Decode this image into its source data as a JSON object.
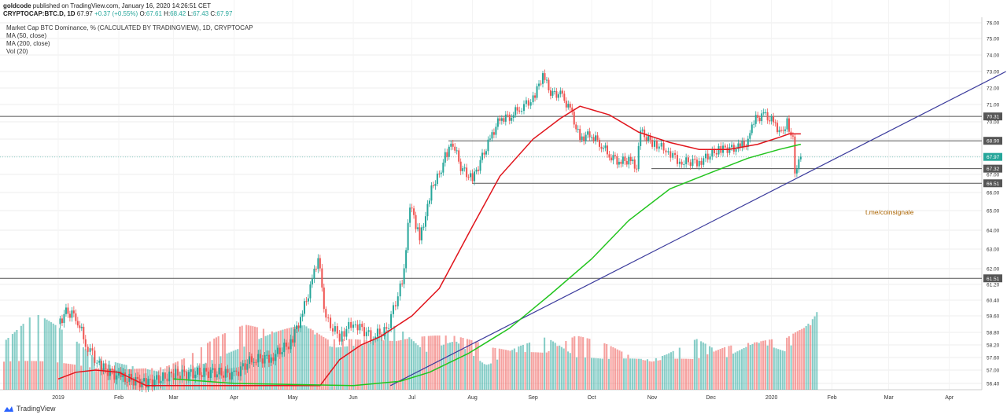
{
  "publish": {
    "author": "goldcode",
    "text": "published on TradingView.com, January 16, 2020 14:26:51 CET"
  },
  "ticker": {
    "symbol": "CRYPTOCAP:BTC.D, 1D",
    "last": "67.97",
    "change": "+0.37 (+0.55%)",
    "o_label": "O:",
    "o": "67.61",
    "h_label": "H:",
    "h": "68.42",
    "l_label": "L:",
    "l": "67.43",
    "c_label": "C:",
    "c": "67.97"
  },
  "legend": {
    "title": "Market Cap BTC Dominance, % (CALCULATED BY TRADINGVIEW), 1D, CRYPTOCAP",
    "ma50": "MA (50, close)",
    "ma200": "MA (200, close)",
    "vol": "Vol (20)"
  },
  "annotation": "t.me/coinsignale",
  "footer": {
    "brand": "TradingView"
  },
  "colors": {
    "up": "#26a69a",
    "down": "#ef5350",
    "ma50": "#e0151c",
    "ma200": "#22c41e",
    "trendline": "#3b3b9c",
    "hline": "#555555",
    "text": "#333333",
    "accent": "#ab6400"
  },
  "chart_data": {
    "type": "candlestick",
    "x_ticks": [
      "2019",
      "Feb",
      "Mar",
      "Apr",
      "May",
      "Jun",
      "Jul",
      "Aug",
      "Sep",
      "Oct",
      "Nov",
      "Dec",
      "2020",
      "Feb",
      "Mar",
      "Apr"
    ],
    "y_ticks": [
      "76.00",
      "75.00",
      "74.00",
      "73.00",
      "72.00",
      "71.00",
      "70.00",
      "69.00",
      "68.00",
      "67.00",
      "66.00",
      "65.00",
      "64.00",
      "63.00",
      "62.00",
      "61.20",
      "60.40",
      "59.60",
      "58.80",
      "58.20",
      "57.60",
      "57.00",
      "56.40"
    ],
    "price_labels": [
      {
        "value": "70.31",
        "bg": "#555555"
      },
      {
        "value": "68.90",
        "bg": "#555555"
      },
      {
        "value": "67.97",
        "bg": "#26a69a"
      },
      {
        "value": "67.32",
        "bg": "#555555"
      },
      {
        "value": "66.51",
        "bg": "#555555"
      },
      {
        "value": "61.51",
        "bg": "#555555"
      }
    ],
    "horizontal_levels": [
      70.31,
      68.9,
      67.32,
      66.51,
      61.51
    ],
    "close_points": [
      [
        "2019-01-01",
        59.2
      ],
      [
        "2019-01-05",
        59.8
      ],
      [
        "2019-01-10",
        59.6
      ],
      [
        "2019-01-15",
        58.3
      ],
      [
        "2019-01-22",
        57.2
      ],
      [
        "2019-02-01",
        56.7
      ],
      [
        "2019-02-15",
        56.4
      ],
      [
        "2019-03-01",
        56.8
      ],
      [
        "2019-03-20",
        56.9
      ],
      [
        "2019-04-01",
        56.8
      ],
      [
        "2019-04-10",
        57.5
      ],
      [
        "2019-04-20",
        57.6
      ],
      [
        "2019-04-30",
        58.3
      ],
      [
        "2019-05-05",
        59.5
      ],
      [
        "2019-05-10",
        61.0
      ],
      [
        "2019-05-14",
        62.6
      ],
      [
        "2019-05-18",
        59.4
      ],
      [
        "2019-05-25",
        58.6
      ],
      [
        "2019-06-01",
        59.3
      ],
      [
        "2019-06-10",
        58.6
      ],
      [
        "2019-06-18",
        58.9
      ],
      [
        "2019-06-25",
        61.0
      ],
      [
        "2019-06-27",
        61.8
      ],
      [
        "2019-06-30",
        65.3
      ],
      [
        "2019-07-03",
        64.3
      ],
      [
        "2019-07-05",
        63.5
      ],
      [
        "2019-07-08",
        64.8
      ],
      [
        "2019-07-11",
        66.3
      ],
      [
        "2019-07-15",
        67.0
      ],
      [
        "2019-07-18",
        68.0
      ],
      [
        "2019-07-22",
        68.8
      ],
      [
        "2019-07-26",
        67.4
      ],
      [
        "2019-08-01",
        66.7
      ],
      [
        "2019-08-05",
        67.7
      ],
      [
        "2019-08-10",
        69.0
      ],
      [
        "2019-08-15",
        70.2
      ],
      [
        "2019-08-20",
        70.3
      ],
      [
        "2019-08-25",
        70.8
      ],
      [
        "2019-09-01",
        71.3
      ],
      [
        "2019-09-06",
        72.8
      ],
      [
        "2019-09-10",
        71.7
      ],
      [
        "2019-09-15",
        71.6
      ],
      [
        "2019-09-20",
        70.7
      ],
      [
        "2019-09-25",
        69.0
      ],
      [
        "2019-09-30",
        69.3
      ],
      [
        "2019-10-05",
        68.8
      ],
      [
        "2019-10-10",
        68.1
      ],
      [
        "2019-10-15",
        67.7
      ],
      [
        "2019-10-20",
        67.8
      ],
      [
        "2019-10-24",
        67.4
      ],
      [
        "2019-10-26",
        69.4
      ],
      [
        "2019-11-01",
        68.8
      ],
      [
        "2019-11-08",
        68.4
      ],
      [
        "2019-11-15",
        67.7
      ],
      [
        "2019-11-25",
        67.7
      ],
      [
        "2019-12-05",
        68.4
      ],
      [
        "2019-12-15",
        68.5
      ],
      [
        "2019-12-20",
        68.8
      ],
      [
        "2019-12-23",
        70.1
      ],
      [
        "2019-12-28",
        70.4
      ],
      [
        "2020-01-02",
        70.0
      ],
      [
        "2020-01-06",
        69.3
      ],
      [
        "2020-01-09",
        70.0
      ],
      [
        "2020-01-12",
        68.9
      ],
      [
        "2020-01-13",
        67.3
      ],
      [
        "2020-01-15",
        67.6
      ],
      [
        "2020-01-16",
        67.97
      ]
    ],
    "ma50_points": [
      [
        "2019-01-01",
        56.6
      ],
      [
        "2019-01-10",
        56.9
      ],
      [
        "2019-01-20",
        57.0
      ],
      [
        "2019-02-01",
        56.9
      ],
      [
        "2019-02-15",
        56.3
      ],
      [
        "2019-05-15",
        56.3
      ],
      [
        "2019-05-25",
        57.5
      ],
      [
        "2019-06-05",
        58.2
      ],
      [
        "2019-06-15",
        58.6
      ],
      [
        "2019-07-01",
        59.6
      ],
      [
        "2019-07-15",
        61.0
      ],
      [
        "2019-08-01",
        64.2
      ],
      [
        "2019-08-15",
        66.9
      ],
      [
        "2019-09-01",
        69.0
      ],
      [
        "2019-09-15",
        70.2
      ],
      [
        "2019-09-25",
        70.9
      ],
      [
        "2019-10-10",
        70.4
      ],
      [
        "2019-10-25",
        69.4
      ],
      [
        "2019-11-10",
        68.8
      ],
      [
        "2019-11-25",
        68.4
      ],
      [
        "2019-12-10",
        68.4
      ],
      [
        "2019-12-25",
        68.7
      ],
      [
        "2020-01-05",
        69.1
      ],
      [
        "2020-01-10",
        69.3
      ],
      [
        "2020-01-16",
        69.3
      ]
    ],
    "ma200_points": [
      [
        "2019-03-01",
        56.6
      ],
      [
        "2019-04-01",
        56.4
      ],
      [
        "2019-06-01",
        56.3
      ],
      [
        "2019-06-25",
        56.5
      ],
      [
        "2019-07-10",
        56.9
      ],
      [
        "2019-07-30",
        57.8
      ],
      [
        "2019-08-20",
        59.0
      ],
      [
        "2019-09-10",
        60.7
      ],
      [
        "2019-10-01",
        62.5
      ],
      [
        "2019-10-20",
        64.5
      ],
      [
        "2019-11-10",
        66.2
      ],
      [
        "2019-12-01",
        67.1
      ],
      [
        "2019-12-20",
        67.9
      ],
      [
        "2020-01-05",
        68.4
      ],
      [
        "2020-01-16",
        68.7
      ]
    ],
    "volume_up": [
      0.6,
      0.8,
      0.55,
      0.3,
      0.25,
      0.22,
      0.2,
      0.3,
      0.4,
      0.55,
      0.7,
      0.5,
      0.45,
      0.6,
      0.35,
      0.5,
      0.3,
      0.45,
      0.5,
      0.3,
      0.3,
      0.35,
      0.4,
      0.5,
      0.3,
      0.45,
      0.4,
      0.95
    ],
    "volume_down": [
      0.35,
      0.3,
      0.25,
      0.2,
      0.2,
      0.25,
      0.35,
      0.5,
      0.6,
      0.55,
      0.7,
      0.6,
      0.5,
      0.45,
      0.5,
      0.55,
      0.55,
      0.4,
      0.35,
      0.5,
      0.45,
      0.35,
      0.35,
      0.3,
      0.4,
      0.45,
      0.55,
      0.85
    ],
    "trendline": [
      [
        "2019-06-20",
        56.3
      ],
      [
        "2020-04-30",
        73.0
      ]
    ]
  }
}
